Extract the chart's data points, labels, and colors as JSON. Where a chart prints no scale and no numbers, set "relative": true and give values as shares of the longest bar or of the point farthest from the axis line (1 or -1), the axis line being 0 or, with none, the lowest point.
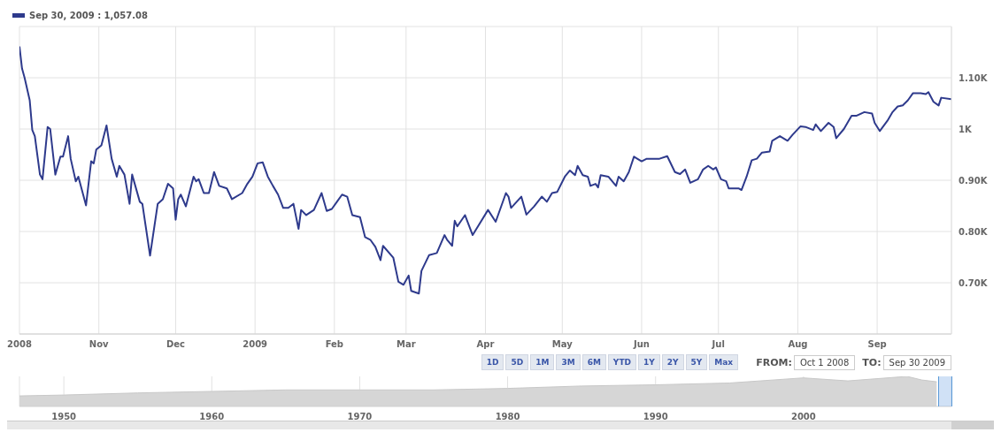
{
  "chart_data": [
    {
      "type": "line",
      "title": "Sep 30, 2009 : 1,057.08",
      "grid": true,
      "annotations": [
        "1D",
        "5D",
        "1M",
        "3M",
        "6M",
        "YTD",
        "1Y",
        "2Y",
        "5Y",
        "Max",
        "FROM:",
        "Oct 1 2008",
        "TO:",
        "Sep 30 2009"
      ],
      "xlim": [
        "2008-10-01",
        "2009-09-30"
      ],
      "xticks": [
        {
          "value": "2008-10-01",
          "label": "2008"
        },
        {
          "value": "2008-11-01",
          "label": "Nov"
        },
        {
          "value": "2008-12-01",
          "label": "Dec"
        },
        {
          "value": "2009-01-01",
          "label": "2009"
        },
        {
          "value": "2009-02-01",
          "label": "Feb"
        },
        {
          "value": "2009-03-01",
          "label": "Mar"
        },
        {
          "value": "2009-04-01",
          "label": "Apr"
        },
        {
          "value": "2009-05-01",
          "label": "May"
        },
        {
          "value": "2009-06-01",
          "label": "Jun"
        },
        {
          "value": "2009-07-01",
          "label": "Jul"
        },
        {
          "value": "2009-08-01",
          "label": "Aug"
        },
        {
          "value": "2009-09-01",
          "label": "Sep"
        }
      ],
      "ylim": [
        600,
        1200
      ],
      "yticks": [
        {
          "value": 700,
          "label": "0.70K"
        },
        {
          "value": 800,
          "label": "0.80K"
        },
        {
          "value": 900,
          "label": "0.90K"
        },
        {
          "value": 1000,
          "label": "1K"
        },
        {
          "value": 1100,
          "label": "1.10K"
        }
      ],
      "x": [
        "2008-10-01",
        "2008-10-02",
        "2008-10-03",
        "2008-10-05",
        "2008-10-06",
        "2008-10-07",
        "2008-10-09",
        "2008-10-10",
        "2008-10-12",
        "2008-10-13",
        "2008-10-15",
        "2008-10-17",
        "2008-10-18",
        "2008-10-20",
        "2008-10-21",
        "2008-10-23",
        "2008-10-24",
        "2008-10-27",
        "2008-10-29",
        "2008-10-30",
        "2008-10-31",
        "2008-11-02",
        "2008-11-04",
        "2008-11-06",
        "2008-11-08",
        "2008-11-09",
        "2008-11-11",
        "2008-11-13",
        "2008-11-14",
        "2008-11-17",
        "2008-11-18",
        "2008-11-21",
        "2008-11-24",
        "2008-11-26",
        "2008-11-28",
        "2008-11-30",
        "2008-12-01",
        "2008-12-02",
        "2008-12-03",
        "2008-12-05",
        "2008-12-08",
        "2008-12-09",
        "2008-12-10",
        "2008-12-12",
        "2008-12-14",
        "2008-12-16",
        "2008-12-18",
        "2008-12-21",
        "2008-12-23",
        "2008-12-27",
        "2008-12-29",
        "2008-12-31",
        "2009-01-02",
        "2009-01-04",
        "2009-01-06",
        "2009-01-08",
        "2009-01-10",
        "2009-01-12",
        "2009-01-14",
        "2009-01-16",
        "2009-01-18",
        "2009-01-19",
        "2009-01-21",
        "2009-01-24",
        "2009-01-27",
        "2009-01-29",
        "2009-01-31",
        "2009-02-02",
        "2009-02-04",
        "2009-02-06",
        "2009-02-08",
        "2009-02-11",
        "2009-02-13",
        "2009-02-15",
        "2009-02-17",
        "2009-02-19",
        "2009-02-20",
        "2009-02-24",
        "2009-02-26",
        "2009-02-28",
        "2009-03-02",
        "2009-03-03",
        "2009-03-06",
        "2009-03-07",
        "2009-03-10",
        "2009-03-13",
        "2009-03-16",
        "2009-03-17",
        "2009-03-19",
        "2009-03-20",
        "2009-03-21",
        "2009-03-24",
        "2009-03-27",
        "2009-04-02",
        "2009-04-05",
        "2009-04-09",
        "2009-04-10",
        "2009-04-11",
        "2009-04-15",
        "2009-04-17",
        "2009-04-20",
        "2009-04-23",
        "2009-04-25",
        "2009-04-27",
        "2009-04-29",
        "2009-05-02",
        "2009-05-04",
        "2009-05-06",
        "2009-05-07",
        "2009-05-09",
        "2009-05-11",
        "2009-05-12",
        "2009-05-14",
        "2009-05-15",
        "2009-05-16",
        "2009-05-19",
        "2009-05-22",
        "2009-05-23",
        "2009-05-25",
        "2009-05-27",
        "2009-05-29",
        "2009-06-01",
        "2009-06-03",
        "2009-06-08",
        "2009-06-11",
        "2009-06-14",
        "2009-06-16",
        "2009-06-18",
        "2009-06-20",
        "2009-06-23",
        "2009-06-25",
        "2009-06-27",
        "2009-06-29",
        "2009-06-30",
        "2009-07-02",
        "2009-07-04",
        "2009-07-05",
        "2009-07-09",
        "2009-07-10",
        "2009-07-12",
        "2009-07-14",
        "2009-07-16",
        "2009-07-18",
        "2009-07-21",
        "2009-07-22",
        "2009-07-25",
        "2009-07-28",
        "2009-07-30",
        "2009-08-02",
        "2009-08-04",
        "2009-08-07",
        "2009-08-08",
        "2009-08-10",
        "2009-08-13",
        "2009-08-15",
        "2009-08-16",
        "2009-08-19",
        "2009-08-22",
        "2009-08-24",
        "2009-08-27",
        "2009-08-30",
        "2009-08-31",
        "2009-09-02",
        "2009-09-05",
        "2009-09-07",
        "2009-09-09",
        "2009-09-11",
        "2009-09-13",
        "2009-09-15",
        "2009-09-18",
        "2009-09-20",
        "2009-09-21",
        "2009-09-23",
        "2009-09-25",
        "2009-09-26",
        "2009-09-30"
      ],
      "series": [
        {
          "color": "#2e3a8c",
          "values": [
            1161,
            1118,
            1100,
            1056,
            998,
            986,
            911,
            902,
            1004,
            1000,
            911,
            946,
            946,
            986,
            942,
            898,
            907,
            851,
            937,
            933,
            960,
            968,
            1007,
            942,
            907,
            928,
            911,
            854,
            911,
            858,
            854,
            753,
            854,
            863,
            893,
            884,
            823,
            863,
            872,
            849,
            907,
            898,
            902,
            875,
            875,
            916,
            889,
            884,
            863,
            875,
            893,
            907,
            933,
            935,
            907,
            889,
            872,
            846,
            846,
            854,
            805,
            842,
            832,
            842,
            875,
            840,
            844,
            858,
            872,
            868,
            832,
            828,
            789,
            784,
            770,
            744,
            772,
            749,
            702,
            696,
            714,
            684,
            679,
            723,
            754,
            758,
            793,
            784,
            772,
            821,
            810,
            832,
            793,
            842,
            819,
            875,
            868,
            846,
            868,
            833,
            849,
            868,
            858,
            875,
            877,
            907,
            919,
            910,
            928,
            910,
            907,
            889,
            893,
            886,
            910,
            907,
            889,
            907,
            898,
            916,
            946,
            937,
            942,
            942,
            947,
            916,
            912,
            921,
            895,
            902,
            921,
            928,
            921,
            925,
            902,
            898,
            884,
            884,
            881,
            907,
            939,
            942,
            954,
            956,
            977,
            986,
            977,
            989,
            1005,
            1004,
            998,
            1009,
            996,
            1012,
            1004,
            982,
            1000,
            1026,
            1026,
            1033,
            1030,
            1012,
            996,
            1016,
            1033,
            1044,
            1046,
            1056,
            1070,
            1070,
            1068,
            1072,
            1053,
            1046,
            1061,
            1058
          ]
        }
      ]
    },
    {
      "type": "area",
      "relative": true,
      "grid": "x",
      "xlim": [
        1947,
        2010
      ],
      "xticks": [
        1950,
        1960,
        1970,
        1980,
        1990,
        2000
      ],
      "x": [
        1947,
        1950,
        1955,
        1960,
        1965,
        1970,
        1975,
        1980,
        1985,
        1990,
        1995,
        2000,
        2003,
        2007,
        2008,
        2009
      ],
      "series": [
        {
          "color": "#d6d6d6",
          "values": [
            0.35,
            0.38,
            0.45,
            0.5,
            0.55,
            0.55,
            0.55,
            0.6,
            0.68,
            0.72,
            0.78,
            0.95,
            0.85,
            1,
            0.88,
            0.82
          ]
        }
      ]
    }
  ]
}
